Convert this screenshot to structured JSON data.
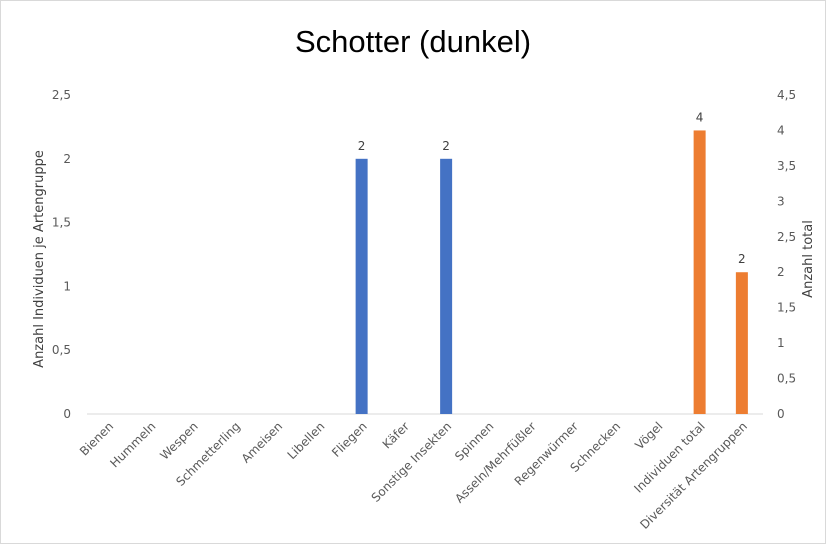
{
  "chart_data": {
    "type": "bar",
    "title": "Schotter (dunkel)",
    "categories": [
      "Bienen",
      "Hummeln",
      "Wespen",
      "Schmetterling",
      "Ameisen",
      "Libellen",
      "Fliegen",
      "Käfer",
      "Sonstige Insekten",
      "Spinnen",
      "Asseln/Mehrfüßler",
      "Regenwürmer",
      "Schnecken",
      "Vögel",
      "Individuen total",
      "Diversität Artengruppen"
    ],
    "series": [
      {
        "axis": "primary",
        "color": "#4472c4",
        "values": [
          0,
          0,
          0,
          0,
          0,
          0,
          2,
          0,
          2,
          0,
          0,
          0,
          0,
          0,
          null,
          null
        ],
        "data_labels": [
          null,
          null,
          null,
          null,
          null,
          null,
          "2",
          null,
          "2",
          null,
          null,
          null,
          null,
          null,
          null,
          null
        ]
      },
      {
        "axis": "secondary",
        "color": "#ed7d31",
        "values": [
          null,
          null,
          null,
          null,
          null,
          null,
          null,
          null,
          null,
          null,
          null,
          null,
          null,
          null,
          4,
          2
        ],
        "data_labels": [
          null,
          null,
          null,
          null,
          null,
          null,
          null,
          null,
          null,
          null,
          null,
          null,
          null,
          null,
          "4",
          "2"
        ]
      }
    ],
    "ylabel": "Anzahl Individuen je Artengruppe",
    "ylim": [
      0,
      2.5
    ],
    "yticks": [
      "0",
      "0,5",
      "1",
      "1,5",
      "2",
      "2,5"
    ],
    "y2label": "Anzahl total",
    "y2lim": [
      0,
      4.5
    ],
    "y2ticks": [
      "0",
      "0,5",
      "1",
      "1,5",
      "2",
      "2,5",
      "3",
      "3,5",
      "4",
      "4,5"
    ],
    "grid": false,
    "legend": "none"
  }
}
